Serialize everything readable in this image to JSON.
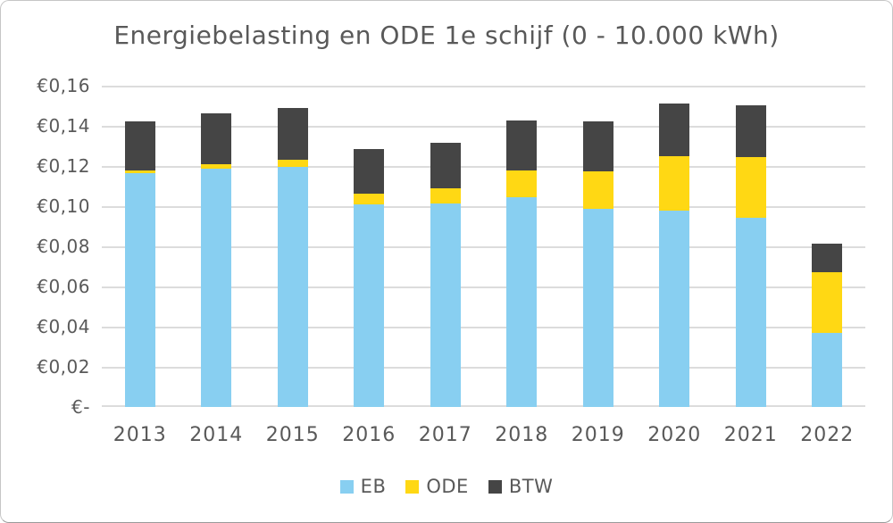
{
  "chart_data": {
    "type": "bar",
    "stacked": true,
    "title": "Energiebelasting en ODE 1e schijf (0 - 10.000 kWh)",
    "categories": [
      "2013",
      "2014",
      "2015",
      "2016",
      "2017",
      "2018",
      "2019",
      "2020",
      "2021",
      "2022"
    ],
    "series": [
      {
        "name": "EB",
        "color": "#88CFF1",
        "values": [
          0.1165,
          0.1185,
          0.1196,
          0.1007,
          0.1013,
          0.1046,
          0.0986,
          0.0977,
          0.0943,
          0.0368
        ]
      },
      {
        "name": "ODE",
        "color": "#FFD814",
        "values": [
          0.0011,
          0.0023,
          0.0036,
          0.0056,
          0.0074,
          0.0132,
          0.0189,
          0.0273,
          0.03,
          0.0305
        ]
      },
      {
        "name": "BTW",
        "color": "#454545",
        "values": [
          0.0247,
          0.0254,
          0.0259,
          0.0223,
          0.0228,
          0.0247,
          0.0247,
          0.0263,
          0.0261,
          0.0141
        ]
      }
    ],
    "totals": [
      0.1423,
      0.1462,
      0.1491,
      0.1286,
      0.1315,
      0.1425,
      0.1422,
      0.1513,
      0.1504,
      0.0814
    ],
    "xlabel": "",
    "ylabel": "",
    "ylim": [
      0,
      0.16
    ],
    "y_ticks": [
      {
        "value": 0.16,
        "label": "€0,16"
      },
      {
        "value": 0.14,
        "label": "€0,14"
      },
      {
        "value": 0.12,
        "label": "€0,12"
      },
      {
        "value": 0.1,
        "label": "€0,10"
      },
      {
        "value": 0.08,
        "label": "€0,08"
      },
      {
        "value": 0.06,
        "label": "€0,06"
      },
      {
        "value": 0.04,
        "label": "€0,04"
      },
      {
        "value": 0.02,
        "label": "€0,02"
      },
      {
        "value": 0.0,
        "label": "€-"
      }
    ],
    "grid": true,
    "legend_position": "bottom",
    "colors": {
      "grid": "#DCDCDC",
      "text": "#595959",
      "background": "#FFFFFF",
      "border": "#C6C6C6"
    }
  }
}
